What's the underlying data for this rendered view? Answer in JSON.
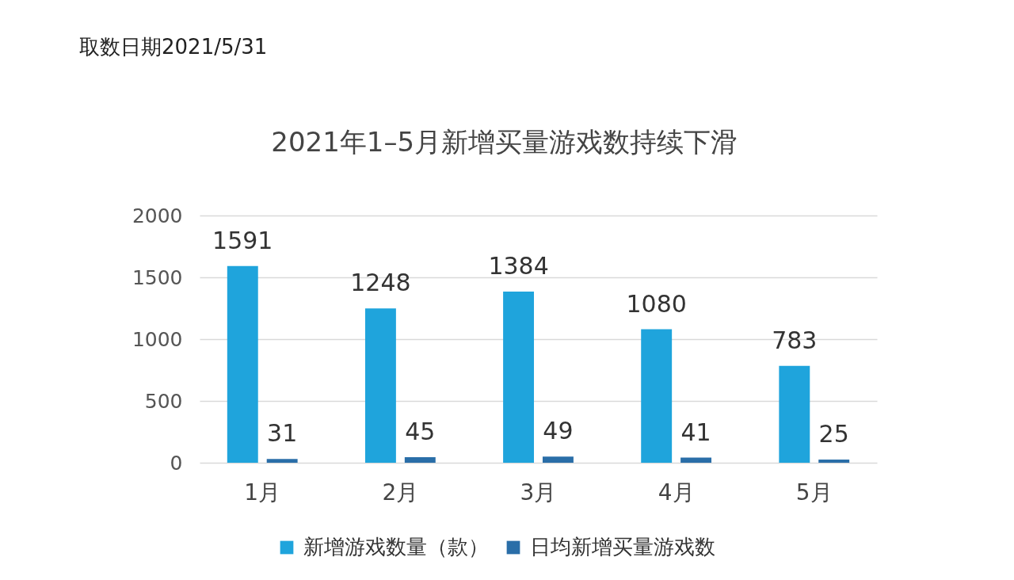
{
  "chart_data": {
    "type": "bar",
    "title": "2021年1–5月新增买量游戏数持续下滑",
    "annotations": [
      "取数日期2021/5/31"
    ],
    "categories": [
      "1月",
      "2月",
      "3月",
      "4月",
      "5月"
    ],
    "series": [
      {
        "name": "新增游戏数量（款）",
        "color": "#1fa4dc",
        "values": [
          1591,
          1248,
          1384,
          1080,
          783
        ]
      },
      {
        "name": "日均新增买量游戏数",
        "color": "#2a6ea8",
        "values": [
          31,
          45,
          49,
          41,
          25
        ]
      }
    ],
    "ylim": [
      0,
      2000
    ],
    "yticks": [
      0,
      500,
      1000,
      1500,
      2000
    ],
    "grid": "y",
    "legend": "bottom",
    "data_labels": true
  }
}
